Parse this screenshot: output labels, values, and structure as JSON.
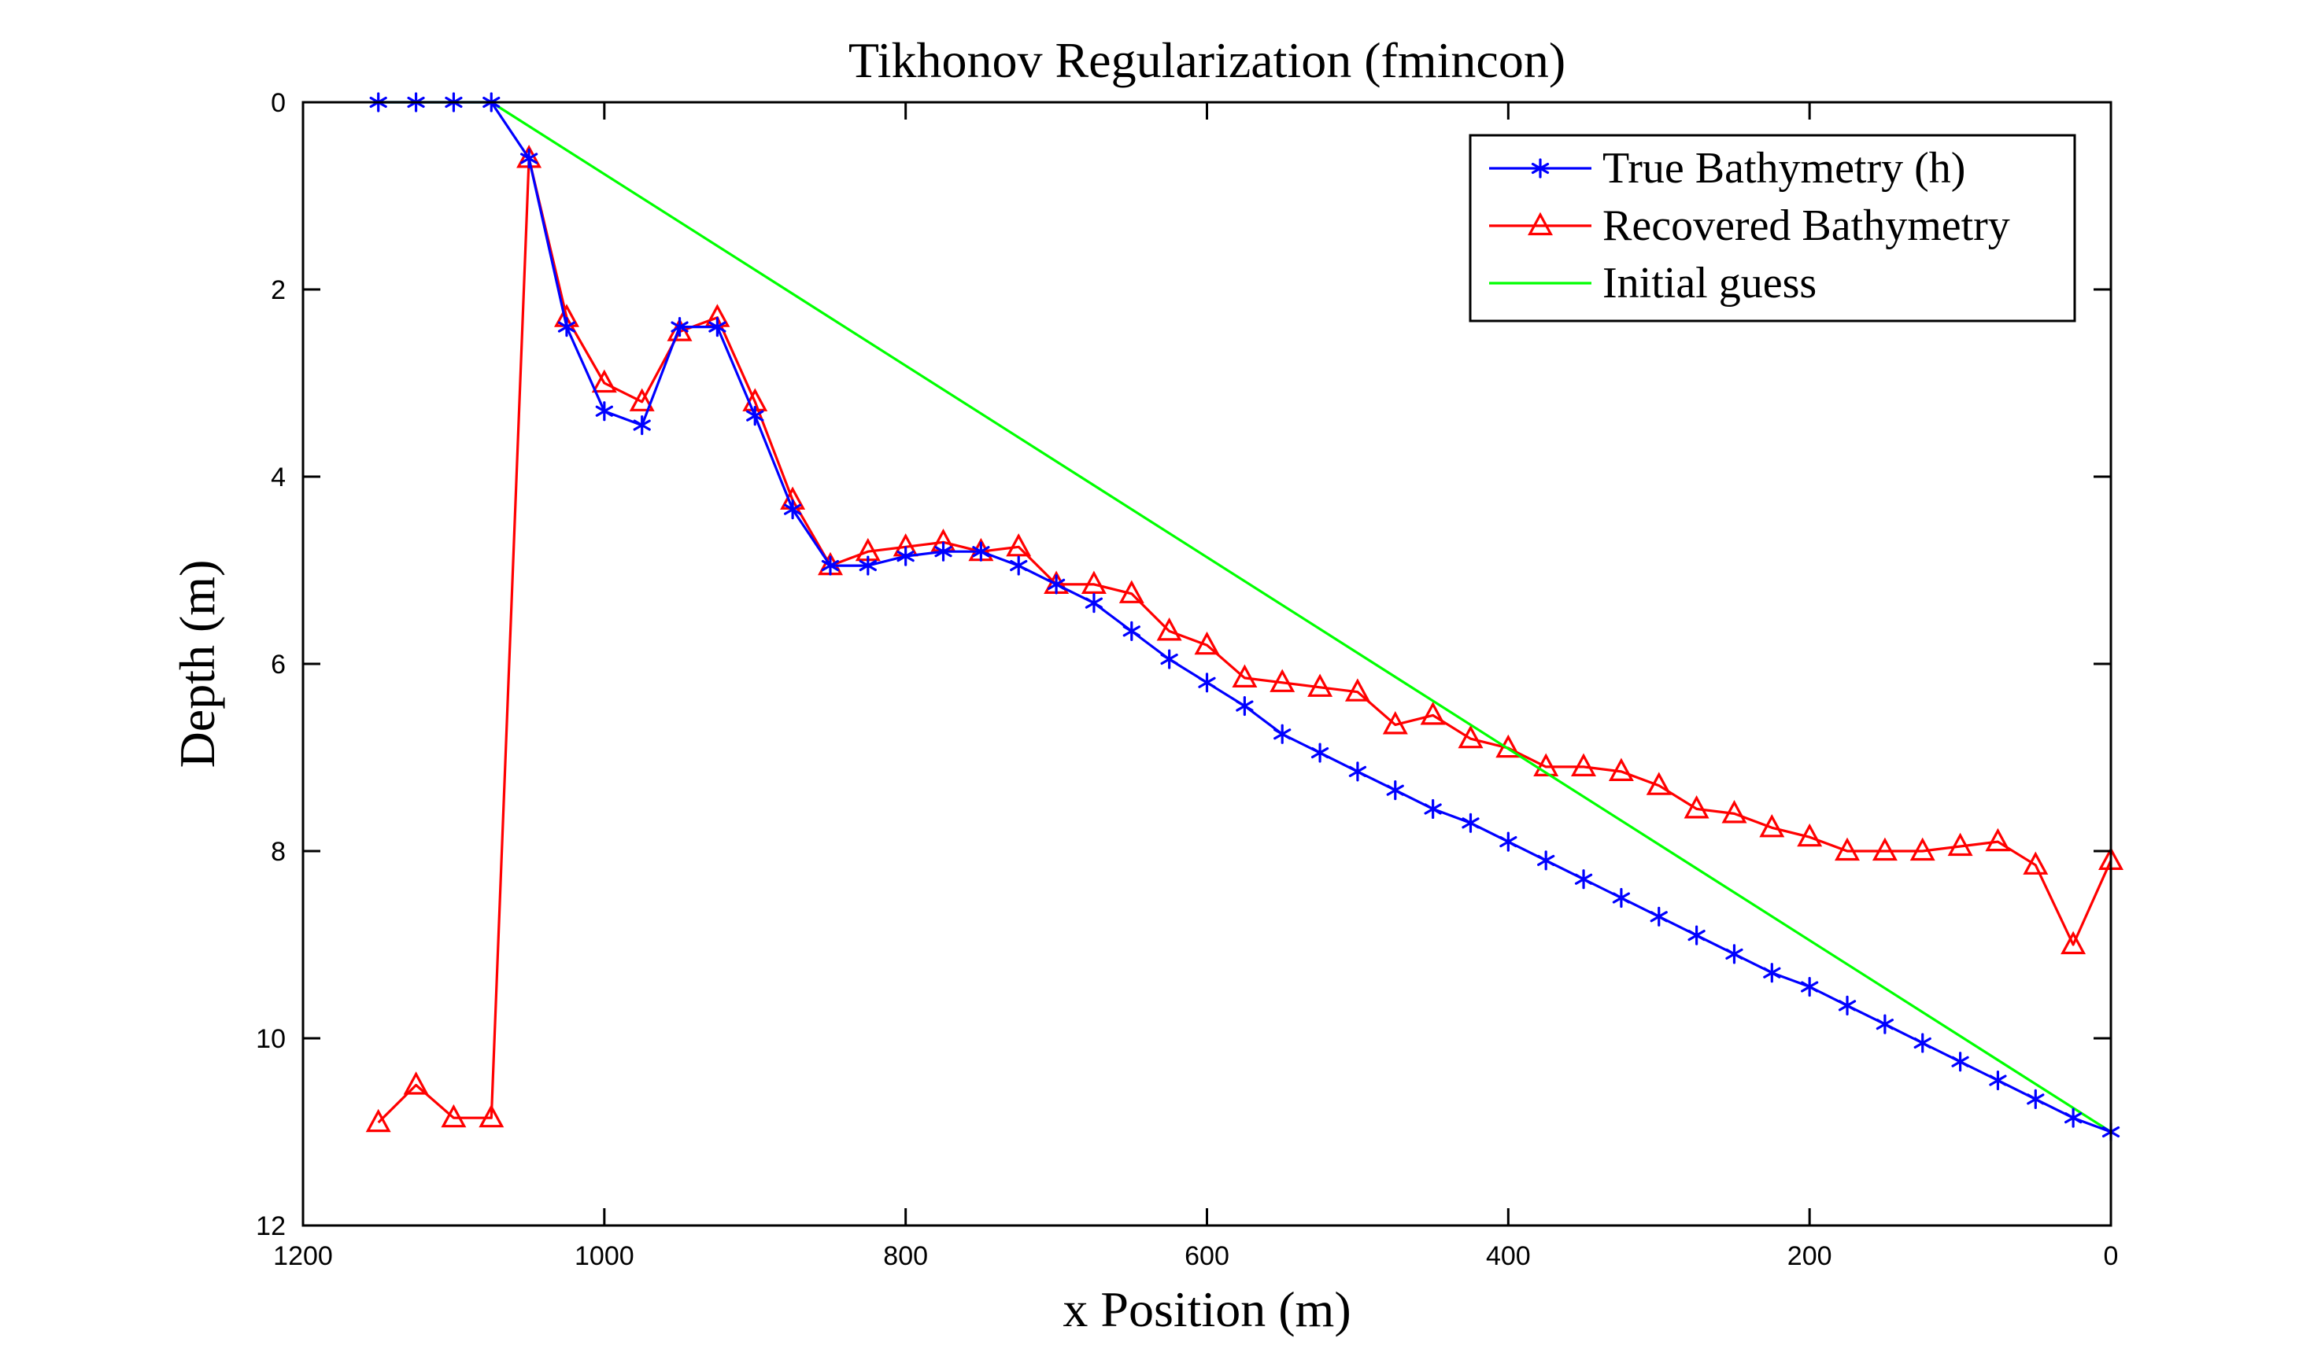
{
  "chart_data": {
    "type": "line",
    "title": "Tikhonov Regularization (fmincon)",
    "xlabel": "x Position (m)",
    "ylabel": "Depth (m)",
    "xlim": [
      1200,
      0
    ],
    "ylim": [
      0,
      12
    ],
    "x_reversed": true,
    "y_reversed": true,
    "xticks": [
      1200,
      1000,
      800,
      600,
      400,
      200,
      0
    ],
    "yticks": [
      0,
      2,
      4,
      6,
      8,
      10,
      12
    ],
    "xtick_labels": [
      "1200",
      "1000",
      "800",
      "600",
      "400",
      "200",
      "0"
    ],
    "ytick_labels": [
      "0",
      "2",
      "4",
      "6",
      "8",
      "10",
      "12"
    ],
    "grid": false,
    "legend_position": "top-right",
    "series": [
      {
        "name": "True Bathymetry (h)",
        "color": "#0000ff",
        "marker": "asterisk",
        "x": [
          1150,
          1125,
          1100,
          1075,
          1050,
          1025,
          1000,
          975,
          950,
          925,
          900,
          875,
          850,
          825,
          800,
          775,
          750,
          725,
          700,
          675,
          650,
          625,
          600,
          575,
          550,
          525,
          500,
          475,
          450,
          425,
          400,
          375,
          350,
          325,
          300,
          275,
          250,
          225,
          200,
          175,
          150,
          125,
          100,
          75,
          50,
          25,
          0
        ],
        "y": [
          0,
          0,
          0,
          0,
          0.6,
          2.4,
          3.3,
          3.45,
          2.4,
          2.4,
          3.35,
          4.35,
          4.95,
          4.95,
          4.85,
          4.8,
          4.8,
          4.95,
          5.15,
          5.35,
          5.65,
          5.95,
          6.2,
          6.45,
          6.75,
          6.95,
          7.15,
          7.35,
          7.55,
          7.7,
          7.9,
          8.1,
          8.3,
          8.5,
          8.7,
          8.9,
          9.1,
          9.3,
          9.45,
          9.65,
          9.85,
          10.05,
          10.25,
          10.45,
          10.65,
          10.85,
          11.0
        ]
      },
      {
        "name": "Recovered Bathymetry",
        "color": "#ff0000",
        "marker": "triangle",
        "x": [
          1150,
          1125,
          1100,
          1075,
          1050,
          1025,
          1000,
          975,
          950,
          925,
          900,
          875,
          850,
          825,
          800,
          775,
          750,
          725,
          700,
          675,
          650,
          625,
          600,
          575,
          550,
          525,
          500,
          475,
          450,
          425,
          400,
          375,
          350,
          325,
          300,
          275,
          250,
          225,
          200,
          175,
          150,
          125,
          100,
          75,
          50,
          25,
          0
        ],
        "y": [
          10.9,
          10.5,
          10.85,
          10.85,
          0.6,
          2.3,
          3.0,
          3.2,
          2.45,
          2.3,
          3.2,
          4.25,
          4.95,
          4.8,
          4.75,
          4.7,
          4.8,
          4.75,
          5.15,
          5.15,
          5.25,
          5.65,
          5.8,
          6.15,
          6.2,
          6.25,
          6.3,
          6.65,
          6.55,
          6.8,
          6.9,
          7.1,
          7.1,
          7.15,
          7.3,
          7.55,
          7.6,
          7.75,
          7.85,
          8.0,
          8.0,
          8.0,
          7.95,
          7.9,
          8.15,
          9.0,
          8.1
        ]
      },
      {
        "name": "Initial guess",
        "color": "#00ff00",
        "marker": "none",
        "x": [
          1150,
          1075,
          0
        ],
        "y": [
          0,
          0,
          11.0
        ]
      }
    ]
  }
}
